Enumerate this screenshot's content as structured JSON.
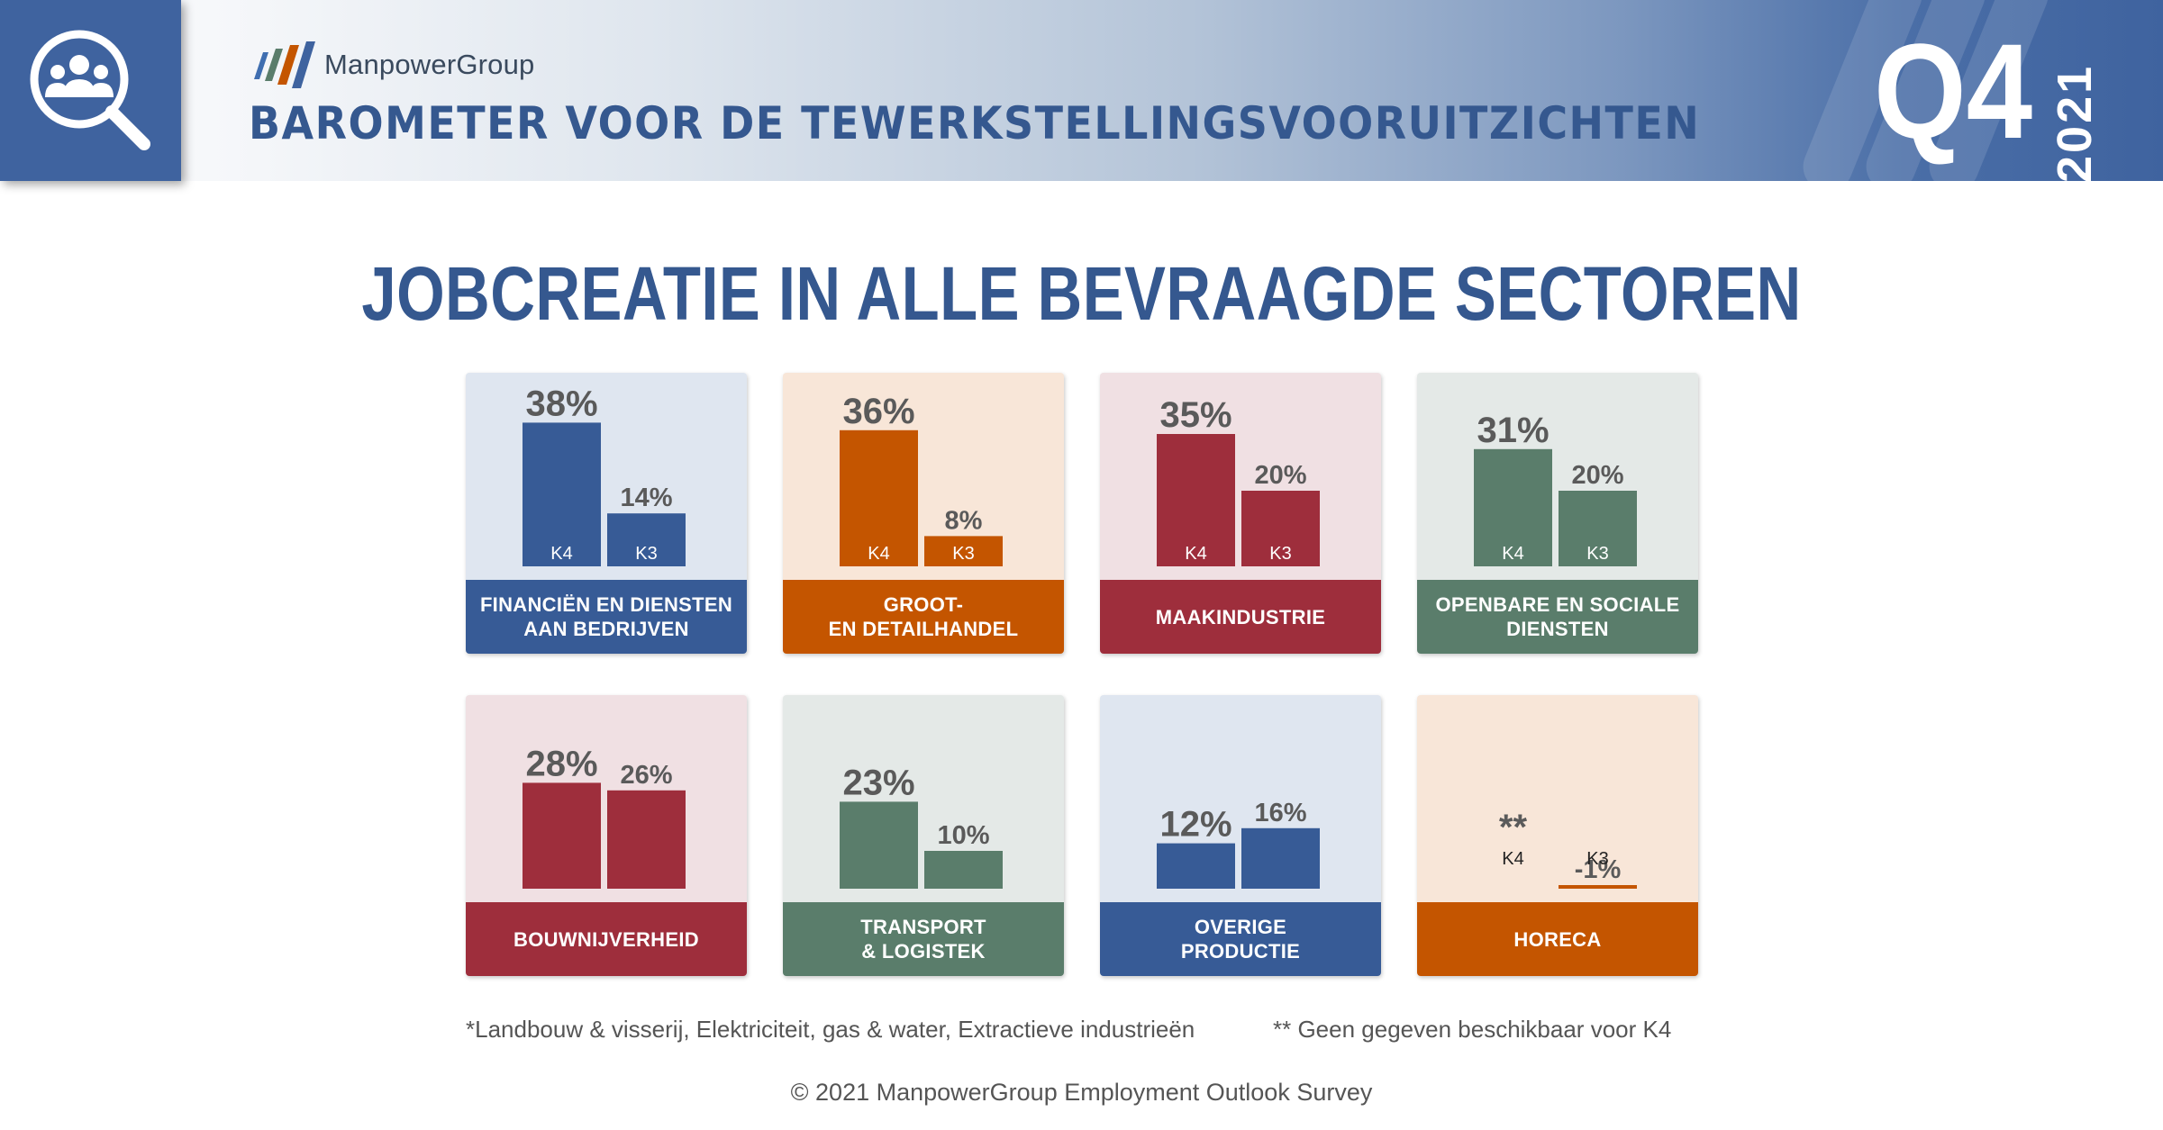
{
  "header": {
    "brand": "ManpowerGroup",
    "title": "BAROMETER VOOR DE TEWERKSTELLINGSVOORUITZICHTEN",
    "quarter": "Q4",
    "year": "2021",
    "icon": "people-search-icon"
  },
  "title": "JOBCREATIE IN ALLE BEVRAAGDE SECTOREN",
  "chart_data": {
    "type": "bar",
    "title": "JOBCREATIE IN ALLE BEVRAAGDE SECTOREN",
    "series_names": [
      "K4",
      "K3"
    ],
    "panels": [
      {
        "sector": "FINANCIËN EN DIENSTEN\nAAN BEDRIJVEN",
        "categories": [
          "K4",
          "K3"
        ],
        "values": [
          38,
          14
        ],
        "labels": [
          "38%",
          "14%"
        ],
        "color": "#375b96",
        "bg": "#dfe6f0",
        "show_cat_labels": true
      },
      {
        "sector": "GROOT-\nEN DETAILHANDEL",
        "categories": [
          "K4",
          "K3"
        ],
        "values": [
          36,
          8
        ],
        "labels": [
          "36%",
          "8%"
        ],
        "color": "#c45500",
        "bg": "#f8e6d8",
        "show_cat_labels": true
      },
      {
        "sector": "MAAKINDUSTRIE",
        "categories": [
          "K4",
          "K3"
        ],
        "values": [
          35,
          20
        ],
        "labels": [
          "35%",
          "20%"
        ],
        "color": "#9e2e3c",
        "bg": "#f0e0e3",
        "show_cat_labels": true
      },
      {
        "sector": "OPENBARE  EN SOCIALE\nDIENSTEN",
        "categories": [
          "K4",
          "K3"
        ],
        "values": [
          31,
          20
        ],
        "labels": [
          "31%",
          "20%"
        ],
        "color": "#5a7d6b",
        "bg": "#e4e9e7",
        "show_cat_labels": true
      },
      {
        "sector": "BOUWNIJVERHEID",
        "categories": [
          "K4",
          "K3"
        ],
        "values": [
          28,
          26
        ],
        "labels": [
          "28%",
          "26%"
        ],
        "color": "#9e2e3c",
        "bg": "#f0e0e3",
        "show_cat_labels": false
      },
      {
        "sector": "TRANSPORT\n& LOGISTEK",
        "categories": [
          "K4",
          "K3"
        ],
        "values": [
          23,
          10
        ],
        "labels": [
          "23%",
          "10%"
        ],
        "color": "#5a7d6b",
        "bg": "#e4e9e7",
        "show_cat_labels": false
      },
      {
        "sector": "OVERIGE\nPRODUCTIE",
        "categories": [
          "K4",
          "K3"
        ],
        "values": [
          12,
          16
        ],
        "labels": [
          "12%",
          "16%"
        ],
        "color": "#375b96",
        "bg": "#dfe6f0",
        "show_cat_labels": false
      },
      {
        "sector": "HORECA",
        "categories": [
          "K4",
          "K3"
        ],
        "values": [
          null,
          -1
        ],
        "labels": [
          "**",
          "-1%"
        ],
        "color": "#c45500",
        "bg": "#f8e6d8",
        "show_cat_labels": true
      }
    ]
  },
  "footnotes": {
    "left": "*Landbouw & visserij, Elektriciteit, gas & water, Extractieve industrieën",
    "right": "** Geen gegeven beschikbaar voor K4"
  },
  "copyright": "© 2021 ManpowerGroup Employment Outlook Survey"
}
